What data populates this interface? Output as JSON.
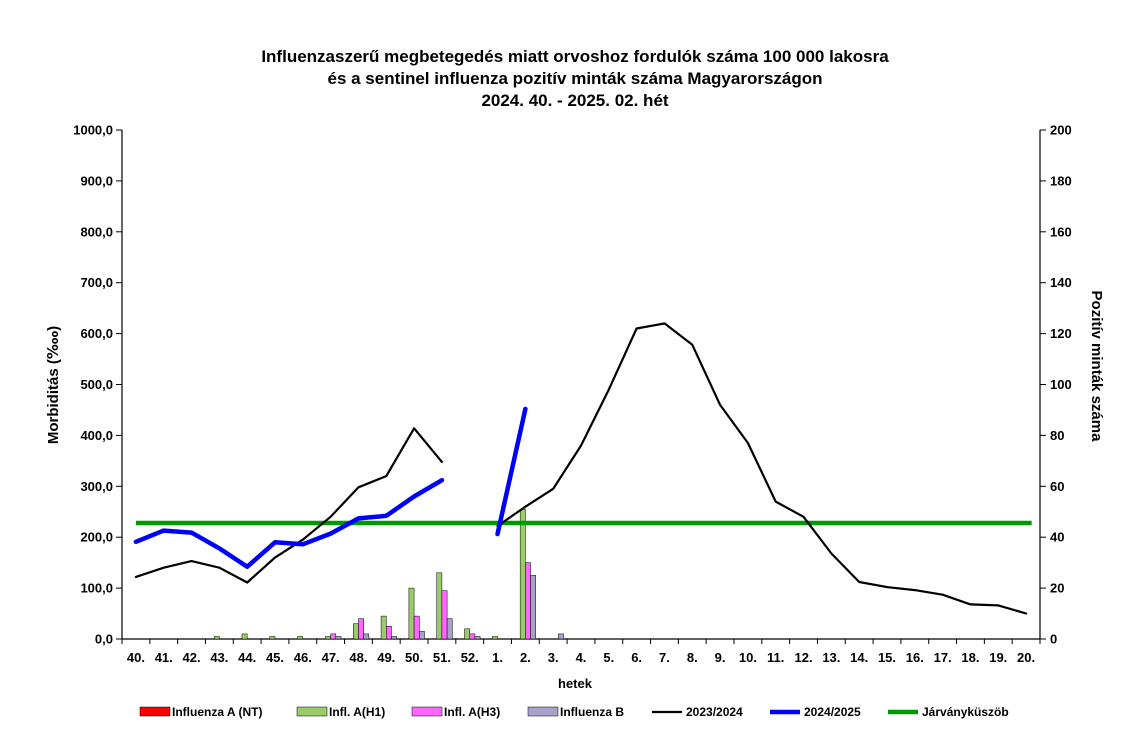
{
  "chart_data": {
    "type": "line",
    "title": [
      "Influenzaszerű megbetegedés miatt orvoshoz fordulók száma 100 000 lakosra",
      "és a sentinel influenza pozitív minták száma Magyarországon",
      "2024. 40. - 2025. 02. hét"
    ],
    "xlabel": "hetek",
    "ylabel_left": "Morbiditás (‱)",
    "ylabel_right": "Pozitív minták száma",
    "ylim_left": [
      0,
      1000
    ],
    "ylim_right": [
      0,
      200
    ],
    "yticks_left": [
      "0,0",
      "100,0",
      "200,0",
      "300,0",
      "400,0",
      "500,0",
      "600,0",
      "700,0",
      "800,0",
      "900,0",
      "1000,0"
    ],
    "yticks_right": [
      "0",
      "20",
      "40",
      "60",
      "80",
      "100",
      "120",
      "140",
      "160",
      "180",
      "200"
    ],
    "categories": [
      "40.",
      "41.",
      "42.",
      "43.",
      "44.",
      "45.",
      "46.",
      "47.",
      "48.",
      "49.",
      "50.",
      "51.",
      "52.",
      "1.",
      "2.",
      "3.",
      "4.",
      "5.",
      "6.",
      "7.",
      "8.",
      "9.",
      "10.",
      "11.",
      "12.",
      "13.",
      "14.",
      "15.",
      "16.",
      "17.",
      "18.",
      "19.",
      "20."
    ],
    "lines": [
      {
        "name": "2023/2024",
        "color": "#000000",
        "width": 2.2,
        "values": [
          122,
          140,
          153,
          140,
          111,
          160,
          195,
          240,
          298,
          320,
          414,
          348,
          null,
          222,
          260,
          295,
          380,
          490,
          610,
          620,
          578,
          460,
          385,
          270,
          240,
          168,
          112,
          102,
          96,
          87,
          68,
          66,
          50
        ]
      },
      {
        "name": "2024/2025",
        "color": "#0000ff",
        "width": 4.5,
        "values": [
          191,
          213,
          209,
          178,
          142,
          190,
          186,
          207,
          237,
          242,
          280,
          312,
          null,
          206,
          452,
          null,
          null,
          null,
          null,
          null,
          null,
          null,
          null,
          null,
          null,
          null,
          null,
          null,
          null,
          null,
          null,
          null,
          null
        ]
      }
    ],
    "threshold": {
      "name": "Járványküszöb",
      "value": 228,
      "color": "#009900"
    },
    "bar_series": [
      {
        "name": "Influenza A (NT)",
        "color": "#ff0000",
        "values": [
          0,
          0,
          0,
          0,
          0,
          0,
          0,
          0,
          0,
          0,
          0,
          0,
          0,
          0,
          0,
          0,
          0,
          0,
          0,
          0,
          0,
          0,
          0,
          0,
          0,
          0,
          0,
          0,
          0,
          0,
          0,
          0,
          0
        ]
      },
      {
        "name": "Infl. A(H1)",
        "color": "#99cc66",
        "values": [
          0,
          0,
          0,
          1,
          2,
          1,
          1,
          1,
          6,
          9,
          20,
          26,
          4,
          1,
          51,
          0,
          0,
          0,
          0,
          0,
          0,
          0,
          0,
          0,
          0,
          0,
          0,
          0,
          0,
          0,
          0,
          0,
          0
        ]
      },
      {
        "name": "Infl. A(H3)",
        "color": "#ff66ff",
        "values": [
          0,
          0,
          0,
          0,
          0,
          0,
          0,
          2,
          8,
          5,
          9,
          19,
          2,
          0,
          30,
          0,
          0,
          0,
          0,
          0,
          0,
          0,
          0,
          0,
          0,
          0,
          0,
          0,
          0,
          0,
          0,
          0,
          0
        ]
      },
      {
        "name": "Influenza B",
        "color": "#aaa0cc",
        "values": [
          0,
          0,
          0,
          0,
          0,
          0,
          0,
          1,
          2,
          1,
          3,
          8,
          1,
          0,
          25,
          2,
          0,
          0,
          0,
          0,
          0,
          0,
          0,
          0,
          0,
          0,
          0,
          0,
          0,
          0,
          0,
          0,
          0
        ]
      }
    ],
    "legend": [
      {
        "label": "Influenza A (NT)",
        "kind": "box",
        "color": "#ff0000"
      },
      {
        "label": "Infl. A(H1)",
        "kind": "box",
        "color": "#99cc66"
      },
      {
        "label": "Infl. A(H3)",
        "kind": "box",
        "color": "#ff66ff"
      },
      {
        "label": "Influenza B",
        "kind": "box",
        "color": "#aaa0cc"
      },
      {
        "label": "2023/2024",
        "kind": "line",
        "color": "#000000"
      },
      {
        "label": "2024/2025",
        "kind": "line",
        "color": "#0000ff"
      },
      {
        "label": "Járványküszöb",
        "kind": "line",
        "color": "#009900"
      }
    ],
    "legend_position": "bottom"
  }
}
